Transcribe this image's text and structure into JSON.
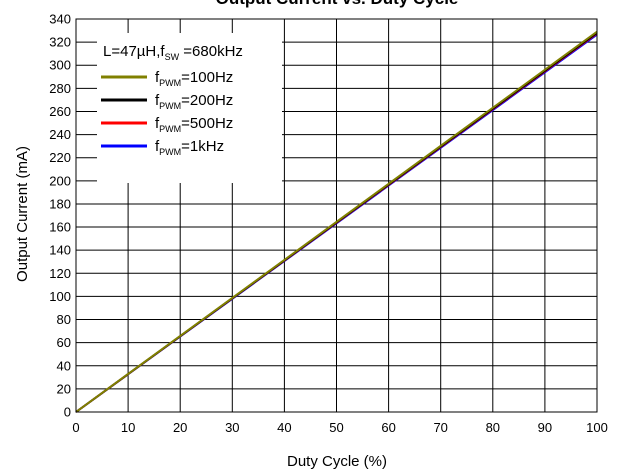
{
  "chart_data": {
    "type": "line",
    "title": "Output Current vs. Duty Cycle",
    "xlabel": "Duty Cycle (%)",
    "ylabel": "Output Current (mA)",
    "xlim": [
      0,
      100
    ],
    "ylim": [
      0,
      340
    ],
    "x_ticks": [
      0,
      10,
      20,
      30,
      40,
      50,
      60,
      70,
      80,
      90,
      100
    ],
    "y_ticks": [
      0,
      20,
      40,
      60,
      80,
      100,
      120,
      140,
      160,
      180,
      200,
      220,
      240,
      260,
      280,
      300,
      320,
      340
    ],
    "grid": true,
    "legend_position": "top-left",
    "legend_header": {
      "prefix": "L=47µH,f",
      "sub": "SW",
      "suffix": " =680kHz"
    },
    "series": [
      {
        "name": "f_PWM=100Hz",
        "label_main": "f",
        "label_sub": "PWM",
        "label_rest": "=100Hz",
        "color": "#808000",
        "x": [
          0,
          100
        ],
        "y": [
          0,
          329
        ]
      },
      {
        "name": "f_PWM=200Hz",
        "label_main": "f",
        "label_sub": "PWM",
        "label_rest": "=200Hz",
        "color": "#000000",
        "x": [
          0,
          100
        ],
        "y": [
          0,
          328
        ]
      },
      {
        "name": "f_PWM=500Hz",
        "label_main": "f",
        "label_sub": "PWM",
        "label_rest": "=500Hz",
        "color": "#ff0000",
        "x": [
          0,
          100
        ],
        "y": [
          0,
          327.5
        ]
      },
      {
        "name": "f_PWM=1kHz",
        "label_main": "f",
        "label_sub": "PWM",
        "label_rest": "=1kHz",
        "color": "#0000ff",
        "x": [
          0,
          100
        ],
        "y": [
          0,
          326.5
        ]
      }
    ],
    "draw_order": [
      3,
      2,
      1,
      0
    ]
  }
}
